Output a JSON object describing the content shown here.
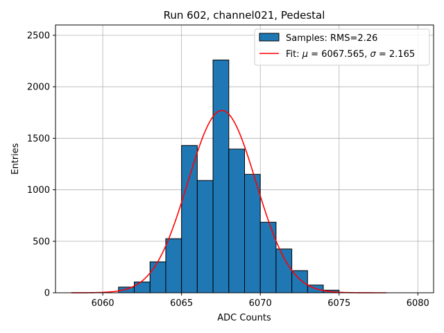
{
  "chart_data": {
    "type": "bar",
    "title": "Run 602, channel021, Pedestal",
    "xlabel": "ADC Counts",
    "ylabel": "Entries",
    "xlim": [
      6057,
      6081
    ],
    "ylim": [
      0,
      2600
    ],
    "xticks": [
      6060,
      6065,
      6070,
      6075,
      6080
    ],
    "yticks": [
      0,
      500,
      1000,
      1500,
      2000,
      2500
    ],
    "grid": true,
    "legend_position": "top-right",
    "bar_color": "#1f77b4",
    "fit_color": "#ff0000",
    "histogram": {
      "name": "Samples: RMS=2.26",
      "bin_edges": [
        6061,
        6062,
        6063,
        6064,
        6065,
        6066,
        6067,
        6068,
        6069,
        6070,
        6071,
        6072,
        6073,
        6074,
        6075
      ],
      "counts": [
        55,
        105,
        300,
        525,
        1430,
        1090,
        2260,
        1395,
        1150,
        685,
        425,
        215,
        75,
        25
      ]
    },
    "fit": {
      "name_prefix": "Fit: ",
      "name_mu": "μ",
      "name_mid": " = 6067.565, ",
      "name_sigma": "σ",
      "name_suffix": " = 2.165",
      "mu": 6067.565,
      "sigma": 2.165,
      "amplitude": 1770,
      "x_range": [
        6058,
        6078
      ]
    }
  }
}
